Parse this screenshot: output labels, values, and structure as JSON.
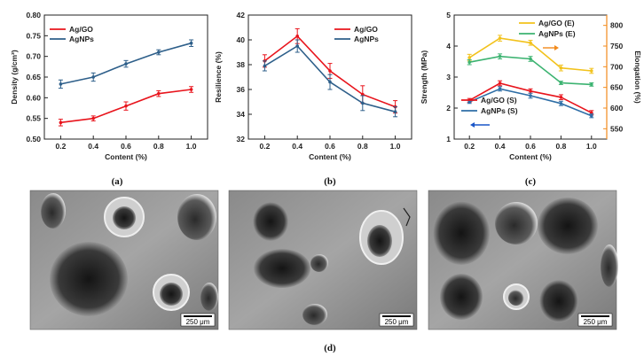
{
  "chart_data": [
    {
      "type": "line",
      "panel_label": "(a)",
      "xlabel": "Content (%)",
      "ylabel": "Density (g/cm³)",
      "x": [
        0.2,
        0.4,
        0.6,
        0.8,
        1.0
      ],
      "xlim": [
        0.1,
        1.1
      ],
      "ylim": [
        0.5,
        0.8
      ],
      "xticks": [
        "0.2",
        "0.4",
        "0.6",
        "0.8",
        "1.0"
      ],
      "yticks": [
        "0.50",
        "0.55",
        "0.60",
        "0.65",
        "0.70",
        "0.75",
        "0.80"
      ],
      "legend_position": "top-left",
      "series": [
        {
          "name": "Ag/GO",
          "color": "#e8141c",
          "values": [
            0.54,
            0.55,
            0.58,
            0.61,
            0.62
          ],
          "err": [
            0.008,
            0.006,
            0.01,
            0.007,
            0.007
          ]
        },
        {
          "name": "AgNPs",
          "color": "#2e5f8a",
          "values": [
            0.633,
            0.65,
            0.682,
            0.71,
            0.732
          ],
          "err": [
            0.01,
            0.01,
            0.008,
            0.006,
            0.008
          ]
        }
      ]
    },
    {
      "type": "line",
      "panel_label": "(b)",
      "xlabel": "Content (%)",
      "ylabel": "Resilience (%)",
      "x": [
        0.2,
        0.4,
        0.6,
        0.8,
        1.0
      ],
      "xlim": [
        0.1,
        1.1
      ],
      "ylim": [
        32,
        42
      ],
      "xticks": [
        "0.2",
        "0.4",
        "0.6",
        "0.8",
        "1.0"
      ],
      "yticks": [
        "32",
        "34",
        "36",
        "38",
        "40",
        "42"
      ],
      "legend_position": "top-right",
      "series": [
        {
          "name": "Ag/GO",
          "color": "#e8141c",
          "values": [
            38.3,
            40.3,
            37.5,
            35.6,
            34.6
          ],
          "err": [
            0.5,
            0.6,
            0.6,
            0.7,
            0.5
          ]
        },
        {
          "name": "AgNPs",
          "color": "#2e5f8a",
          "values": [
            37.9,
            39.5,
            36.6,
            34.9,
            34.2
          ],
          "err": [
            0.4,
            0.5,
            0.6,
            0.6,
            0.4
          ]
        }
      ]
    },
    {
      "type": "line",
      "panel_label": "(c)",
      "xlabel": "Content (%)",
      "ylabel": "Strength (MPa)",
      "y2label": "Elongation (%)",
      "x": [
        0.2,
        0.4,
        0.6,
        0.8,
        1.0
      ],
      "xlim": [
        0.1,
        1.1
      ],
      "ylim": [
        1,
        5
      ],
      "y2lim": [
        525,
        825
      ],
      "xticks": [
        "0.2",
        "0.4",
        "0.6",
        "0.8",
        "1.0"
      ],
      "yticks": [
        "1",
        "2",
        "3",
        "4",
        "5"
      ],
      "y2ticks": [
        "550",
        "600",
        "650",
        "700",
        "750",
        "800"
      ],
      "legend_position": "top-right (E), bottom-left (S)",
      "axis_colors": {
        "left": "#2b3a8f",
        "right": "#f28a1c"
      },
      "series": [
        {
          "name": "Ag/GO (S)",
          "axis": "left",
          "color": "#e8141c",
          "values": [
            2.25,
            2.8,
            2.55,
            2.35,
            1.85
          ],
          "err": [
            0.06,
            0.08,
            0.07,
            0.08,
            0.07
          ]
        },
        {
          "name": "AgNPs (S)",
          "axis": "left",
          "color": "#2e6ea6",
          "values": [
            2.2,
            2.62,
            2.4,
            2.15,
            1.75
          ],
          "err": [
            0.05,
            0.07,
            0.08,
            0.07,
            0.06
          ]
        },
        {
          "name": "Ag/GO (E)",
          "axis": "right",
          "color": "#f2c21c",
          "values": [
            722,
            769,
            758,
            697,
            690
          ],
          "err": [
            8,
            7,
            6,
            7,
            6
          ]
        },
        {
          "name": "AgNPs (E)",
          "axis": "right",
          "color": "#3cb371",
          "values": [
            711,
            725,
            719,
            661,
            657
          ],
          "err": [
            6,
            6,
            6,
            4,
            4
          ]
        }
      ]
    }
  ],
  "micrographs": {
    "label": "(d)",
    "scale_bars": [
      "250 μm",
      "250 μm",
      "250 μm"
    ]
  }
}
